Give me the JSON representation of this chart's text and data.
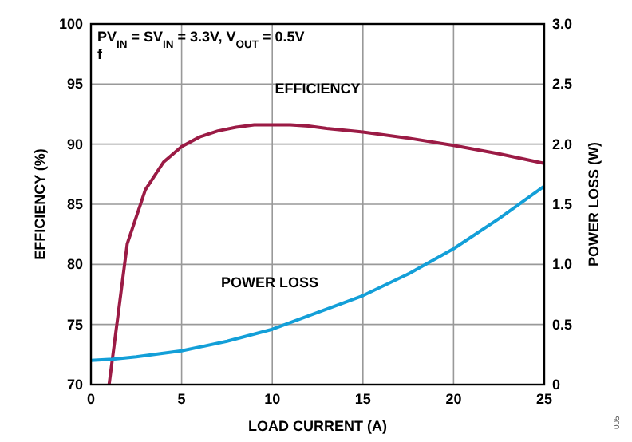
{
  "chart_data": {
    "type": "line",
    "title": "PV$_{IN}$ = SV$_{IN}$ = 3.3V, V$_{OUT}$ = 0.5V",
    "subtitle": "f",
    "xlabel": "LOAD CURRENT (A)",
    "ylabel": "EFFICIENCY (%)",
    "y2label": "POWER LOSS (W)",
    "xlim": [
      0,
      25
    ],
    "xticks": [
      0,
      5,
      10,
      15,
      20,
      25
    ],
    "ylim": [
      70,
      100
    ],
    "yticks": [
      70,
      75,
      80,
      85,
      90,
      95,
      100
    ],
    "y2lim": [
      0,
      3
    ],
    "y2ticks": [
      {
        "value": 0,
        "label": "0"
      },
      {
        "value": 0.5,
        "label": "0.5"
      },
      {
        "value": 1,
        "label": "1.0"
      },
      {
        "value": 1.5,
        "label": "1.5"
      },
      {
        "value": 2,
        "label": "2.0"
      },
      {
        "value": 2.5,
        "label": "2.5"
      },
      {
        "value": 3,
        "label": "3.0"
      }
    ],
    "grid": true,
    "series": [
      {
        "name": "EFFICIENCY",
        "color": "#9b1b45",
        "x": [
          1,
          2,
          3,
          4,
          5,
          6,
          7,
          8,
          9,
          10,
          11,
          12,
          13,
          15,
          17.5,
          20,
          22.5,
          25
        ],
        "values": [
          70,
          81.7,
          86.2,
          88.5,
          89.8,
          90.6,
          91.1,
          91.4,
          91.6,
          91.6,
          91.6,
          91.5,
          91.3,
          91,
          90.5,
          89.9,
          89.2,
          88.4
        ]
      },
      {
        "name": "POWER LOSS",
        "color": "#139fd8",
        "axis": "y2",
        "x": [
          0,
          1.2,
          2.5,
          5,
          7.5,
          10,
          12.5,
          15,
          17.5,
          20,
          22.5,
          25
        ],
        "values": [
          0.2,
          0.21,
          0.23,
          0.28,
          0.36,
          0.46,
          0.6,
          0.74,
          0.92,
          1.13,
          1.38,
          1.65
        ]
      }
    ],
    "annotations": [
      "005"
    ]
  }
}
